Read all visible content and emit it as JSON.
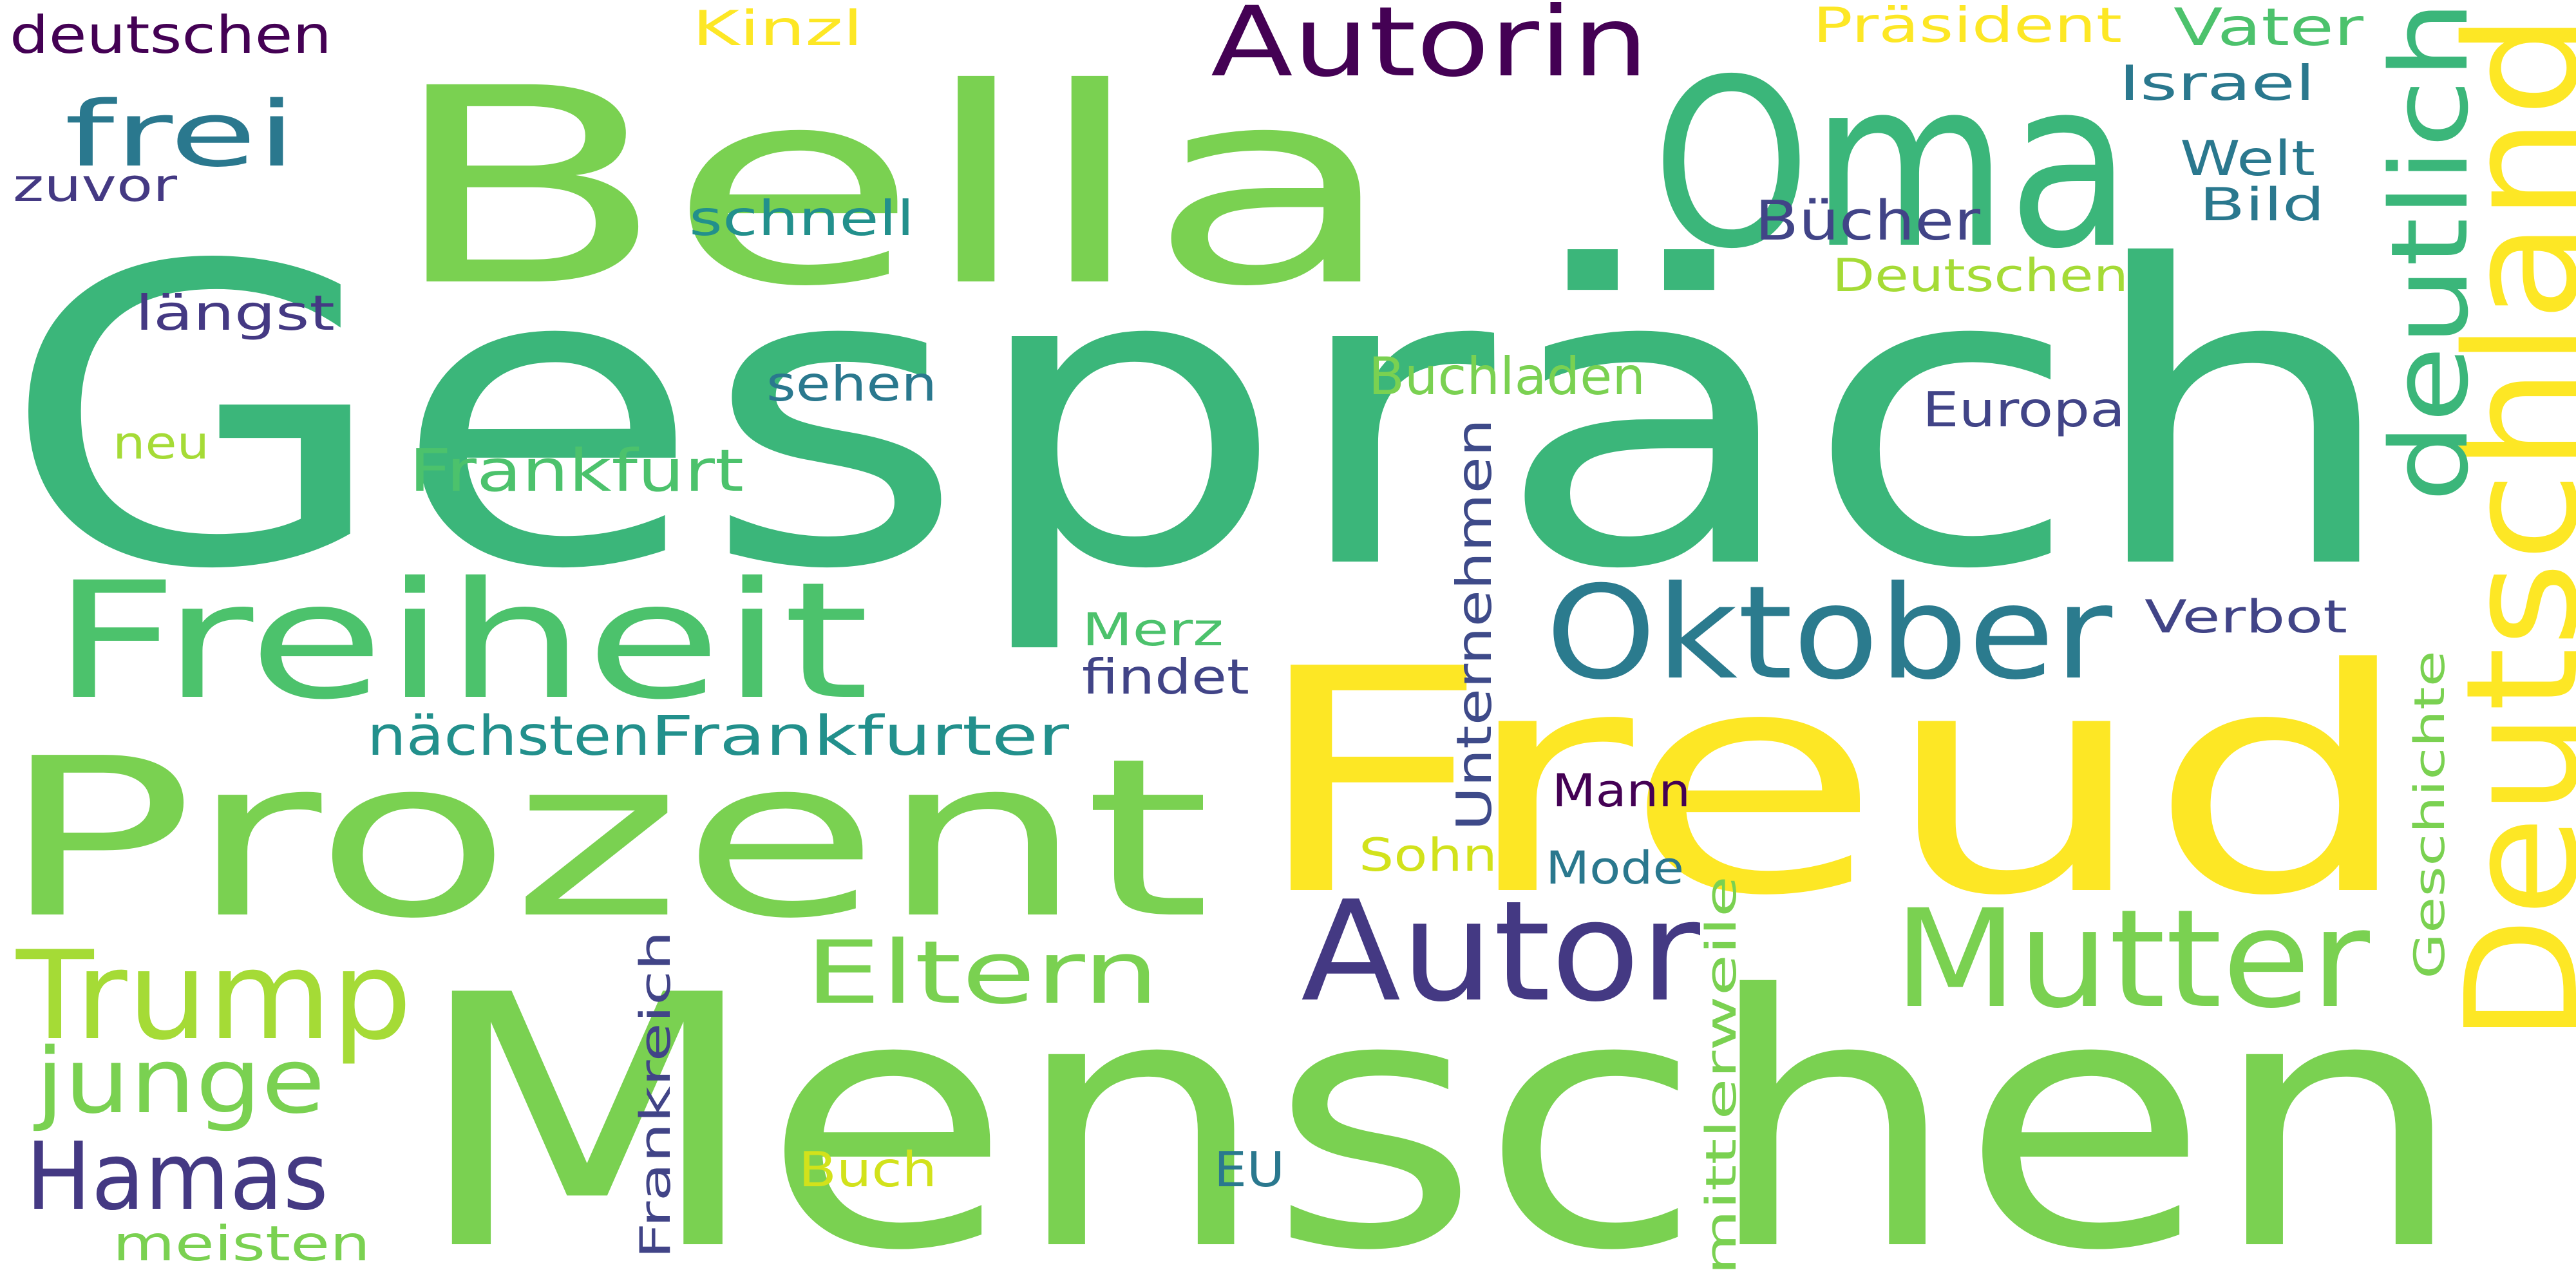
{
  "words": [
    {
      "text": "Gespräch",
      "color": "#3bb67a"
    },
    {
      "text": "Menschen",
      "color": "#7ad151"
    },
    {
      "text": "Freud",
      "color": "#fde725"
    },
    {
      "text": "Bella",
      "color": "#7ad151"
    },
    {
      "text": "Oma",
      "color": "#3bb67a"
    },
    {
      "text": "Prozent",
      "color": "#7ad151"
    },
    {
      "text": "Deutschland",
      "color": "#fde725"
    },
    {
      "text": "Freiheit",
      "color": "#4cc26c"
    },
    {
      "text": "Oktober",
      "color": "#2b7b8e"
    },
    {
      "text": "Autor",
      "color": "#443983"
    },
    {
      "text": "Mutter",
      "color": "#7ad151"
    },
    {
      "text": "Trump",
      "color": "#a5db36"
    },
    {
      "text": "deutlich",
      "color": "#3bb67a"
    },
    {
      "text": "Autorin",
      "color": "#440154"
    },
    {
      "text": "Eltern",
      "color": "#7ad151"
    },
    {
      "text": "junge",
      "color": "#7ad151"
    },
    {
      "text": "Hamas",
      "color": "#443983"
    },
    {
      "text": "frei",
      "color": "#2a788e"
    },
    {
      "text": "Frankfurter",
      "color": "#22908c"
    },
    {
      "text": "nächsten",
      "color": "#22908c"
    },
    {
      "text": "Frankfurt",
      "color": "#4cc26c"
    },
    {
      "text": "Unternehmen",
      "color": "#3e4a89"
    },
    {
      "text": "Buchladen",
      "color": "#7ad151"
    },
    {
      "text": "Europa",
      "color": "#414487"
    },
    {
      "text": "Bücher",
      "color": "#414487"
    },
    {
      "text": "deutschen",
      "color": "#440154"
    },
    {
      "text": "Kinzl",
      "color": "#fde725"
    },
    {
      "text": "Präsident",
      "color": "#fde725"
    },
    {
      "text": "Vater",
      "color": "#4cc26c"
    },
    {
      "text": "Israel",
      "color": "#2a788e"
    },
    {
      "text": "Welt",
      "color": "#2a788e"
    },
    {
      "text": "Bild",
      "color": "#2a788e"
    },
    {
      "text": "Deutschen",
      "color": "#a5db36"
    },
    {
      "text": "schnell",
      "color": "#22908c"
    },
    {
      "text": "zuvor",
      "color": "#443983"
    },
    {
      "text": "längst",
      "color": "#443983"
    },
    {
      "text": "sehen",
      "color": "#2a788e"
    },
    {
      "text": "neu",
      "color": "#a5db36"
    },
    {
      "text": "Merz",
      "color": "#4cc26c"
    },
    {
      "text": "findet",
      "color": "#414487"
    },
    {
      "text": "Verbot",
      "color": "#414487"
    },
    {
      "text": "Mann",
      "color": "#440154"
    },
    {
      "text": "Sohn",
      "color": "#d2e21b"
    },
    {
      "text": "Mode",
      "color": "#2a788e"
    },
    {
      "text": "Geschichte",
      "color": "#7ad151"
    },
    {
      "text": "mittlerweile",
      "color": "#7ad151"
    },
    {
      "text": "Frankreich",
      "color": "#414487"
    },
    {
      "text": "Buch",
      "color": "#d2e21b"
    },
    {
      "text": "EU",
      "color": "#2a788e"
    },
    {
      "text": "meisten",
      "color": "#7ad151"
    }
  ]
}
